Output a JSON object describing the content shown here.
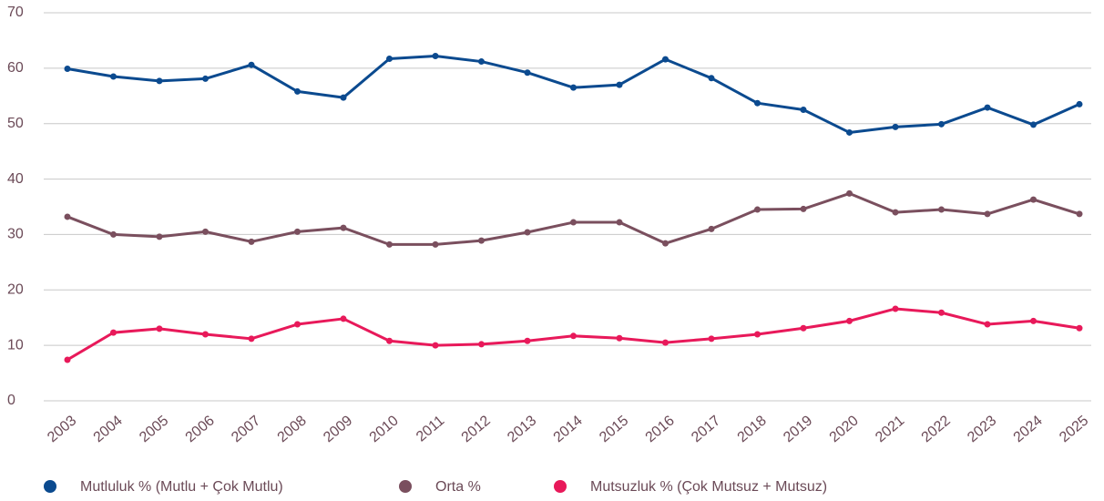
{
  "chart_data": {
    "type": "line",
    "categories": [
      "2003",
      "2004",
      "2005",
      "2006",
      "2007",
      "2008",
      "2009",
      "2010",
      "2011",
      "2012",
      "2013",
      "2014",
      "2015",
      "2016",
      "2017",
      "2018",
      "2019",
      "2020",
      "2021",
      "2022",
      "2023",
      "2024",
      "2025"
    ],
    "series": [
      {
        "name": "Mutluluk % (Mutlu + Çok Mutlu)",
        "color": "#0b4a8f",
        "values": [
          59.9,
          58.5,
          57.7,
          58.1,
          60.6,
          55.8,
          54.7,
          61.7,
          62.2,
          61.2,
          59.2,
          56.5,
          57.0,
          61.6,
          58.2,
          53.7,
          52.5,
          48.4,
          49.4,
          49.9,
          52.9,
          49.8,
          53.5
        ]
      },
      {
        "name": "Orta %",
        "color": "#7a4f5e",
        "values": [
          33.2,
          30.0,
          29.6,
          30.5,
          28.7,
          30.5,
          31.2,
          28.2,
          28.2,
          28.9,
          30.4,
          32.2,
          32.2,
          28.4,
          31.0,
          34.5,
          34.6,
          37.4,
          34.0,
          34.5,
          33.7,
          36.3,
          33.7
        ]
      },
      {
        "name": "Mutsuzluk % (Çok Mutsuz + Mutsuz)",
        "color": "#e8195a",
        "values": [
          7.4,
          12.3,
          13.0,
          12.0,
          11.2,
          13.8,
          14.8,
          10.8,
          10.0,
          10.2,
          10.8,
          11.7,
          11.3,
          10.5,
          11.2,
          12.0,
          13.1,
          14.4,
          16.6,
          15.9,
          13.8,
          14.4,
          13.1
        ]
      }
    ],
    "ylim": [
      0,
      70
    ],
    "yticks": [
      0,
      10,
      20,
      30,
      40,
      50,
      60,
      70
    ],
    "grid": true
  }
}
